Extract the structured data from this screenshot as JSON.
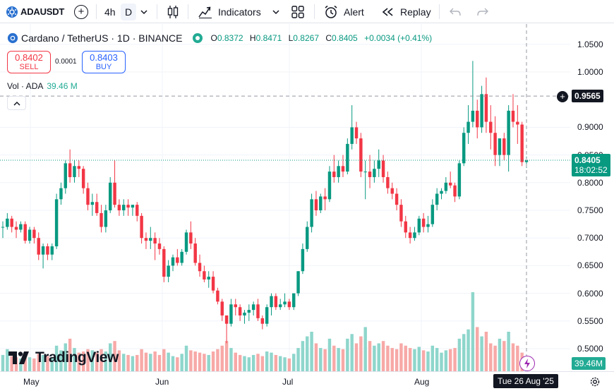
{
  "toolbar": {
    "symbol": "ADAUSDT",
    "timeframes": [
      "4h",
      "D"
    ],
    "active_timeframe": "D",
    "indicators_label": "Indicators",
    "alert_label": "Alert",
    "replay_label": "Replay"
  },
  "legend": {
    "title": "Cardano / TetherUS · 1D · BINANCE",
    "o_label": "O",
    "o_value": "0.8372",
    "h_label": "H",
    "h_value": "0.8471",
    "l_label": "L",
    "l_value": "0.8267",
    "c_label": "C",
    "c_value": "0.8405",
    "change": "+0.0034 (+0.41%)"
  },
  "trade": {
    "sell_price": "0.8402",
    "sell_label": "SELL",
    "buy_price": "0.8403",
    "buy_label": "BUY",
    "spread": "0.0001"
  },
  "volume_legend": {
    "label": "Vol · ADA",
    "value": "39.46 M"
  },
  "price_scale": {
    "ticks": [
      "1.0500",
      "1.0000",
      "0.9000",
      "0.8500",
      "0.8000",
      "0.7500",
      "0.7000",
      "0.6500",
      "0.6000",
      "0.5500",
      "0.5000"
    ],
    "crosshair_price": "0.9565",
    "last_price": "0.8405",
    "countdown": "18:02:52",
    "volume_tag": "39.46M"
  },
  "time_scale": {
    "ticks": [
      "May",
      "Jun",
      "Jul",
      "Aug"
    ],
    "crosshair_date": "Tue 26 Aug '25"
  },
  "brand": "TradingView",
  "colors": {
    "up": "#089981",
    "down": "#f23645",
    "up_vol": "#8ed6cc",
    "down_vol": "#f7a9a7"
  },
  "chart_data": {
    "type": "candlestick",
    "symbol": "ADAUSDT",
    "interval": "1D",
    "ylim": [
      0.48,
      1.07
    ],
    "candles": [
      [
        0.72,
        0.73,
        0.7,
        0.72
      ],
      [
        0.72,
        0.745,
        0.715,
        0.735
      ],
      [
        0.735,
        0.74,
        0.71,
        0.72
      ],
      [
        0.72,
        0.73,
        0.7,
        0.715
      ],
      [
        0.715,
        0.73,
        0.71,
        0.725
      ],
      [
        0.725,
        0.73,
        0.69,
        0.695
      ],
      [
        0.695,
        0.72,
        0.69,
        0.715
      ],
      [
        0.715,
        0.72,
        0.69,
        0.7
      ],
      [
        0.7,
        0.71,
        0.66,
        0.67
      ],
      [
        0.67,
        0.69,
        0.645,
        0.685
      ],
      [
        0.685,
        0.69,
        0.66,
        0.67
      ],
      [
        0.67,
        0.69,
        0.66,
        0.685
      ],
      [
        0.685,
        0.78,
        0.68,
        0.77
      ],
      [
        0.77,
        0.8,
        0.76,
        0.79
      ],
      [
        0.79,
        0.84,
        0.78,
        0.835
      ],
      [
        0.835,
        0.86,
        0.8,
        0.81
      ],
      [
        0.81,
        0.84,
        0.8,
        0.83
      ],
      [
        0.83,
        0.84,
        0.81,
        0.825
      ],
      [
        0.825,
        0.83,
        0.78,
        0.79
      ],
      [
        0.79,
        0.8,
        0.75,
        0.76
      ],
      [
        0.76,
        0.78,
        0.74,
        0.765
      ],
      [
        0.765,
        0.78,
        0.74,
        0.745
      ],
      [
        0.745,
        0.76,
        0.71,
        0.72
      ],
      [
        0.72,
        0.76,
        0.71,
        0.75
      ],
      [
        0.75,
        0.81,
        0.745,
        0.8
      ],
      [
        0.8,
        0.84,
        0.755,
        0.76
      ],
      [
        0.76,
        0.77,
        0.74,
        0.75
      ],
      [
        0.75,
        0.77,
        0.74,
        0.76
      ],
      [
        0.76,
        0.77,
        0.74,
        0.755
      ],
      [
        0.755,
        0.76,
        0.74,
        0.76
      ],
      [
        0.76,
        0.765,
        0.73,
        0.74
      ],
      [
        0.74,
        0.745,
        0.69,
        0.7
      ],
      [
        0.7,
        0.71,
        0.68,
        0.695
      ],
      [
        0.695,
        0.72,
        0.68,
        0.7
      ],
      [
        0.7,
        0.71,
        0.66,
        0.69
      ],
      [
        0.69,
        0.7,
        0.67,
        0.68
      ],
      [
        0.68,
        0.685,
        0.62,
        0.63
      ],
      [
        0.63,
        0.66,
        0.62,
        0.65
      ],
      [
        0.65,
        0.67,
        0.64,
        0.665
      ],
      [
        0.665,
        0.68,
        0.65,
        0.655
      ],
      [
        0.655,
        0.68,
        0.65,
        0.675
      ],
      [
        0.675,
        0.715,
        0.67,
        0.71
      ],
      [
        0.71,
        0.73,
        0.68,
        0.69
      ],
      [
        0.69,
        0.7,
        0.65,
        0.655
      ],
      [
        0.655,
        0.67,
        0.63,
        0.64
      ],
      [
        0.64,
        0.65,
        0.62,
        0.625
      ],
      [
        0.625,
        0.64,
        0.61,
        0.63
      ],
      [
        0.63,
        0.64,
        0.6,
        0.605
      ],
      [
        0.605,
        0.61,
        0.58,
        0.585
      ],
      [
        0.585,
        0.59,
        0.55,
        0.56
      ],
      [
        0.56,
        0.56,
        0.51,
        0.545
      ],
      [
        0.545,
        0.59,
        0.54,
        0.58
      ],
      [
        0.58,
        0.59,
        0.56,
        0.575
      ],
      [
        0.575,
        0.58,
        0.55,
        0.56
      ],
      [
        0.56,
        0.57,
        0.545,
        0.565
      ],
      [
        0.565,
        0.58,
        0.55,
        0.57
      ],
      [
        0.57,
        0.585,
        0.56,
        0.58
      ],
      [
        0.58,
        0.59,
        0.55,
        0.555
      ],
      [
        0.555,
        0.56,
        0.535,
        0.545
      ],
      [
        0.545,
        0.58,
        0.54,
        0.575
      ],
      [
        0.575,
        0.6,
        0.56,
        0.595
      ],
      [
        0.595,
        0.6,
        0.57,
        0.575
      ],
      [
        0.575,
        0.59,
        0.57,
        0.58
      ],
      [
        0.58,
        0.6,
        0.575,
        0.585
      ],
      [
        0.585,
        0.59,
        0.57,
        0.575
      ],
      [
        0.575,
        0.6,
        0.57,
        0.6
      ],
      [
        0.6,
        0.64,
        0.595,
        0.64
      ],
      [
        0.64,
        0.69,
        0.635,
        0.68
      ],
      [
        0.68,
        0.73,
        0.675,
        0.72
      ],
      [
        0.72,
        0.78,
        0.71,
        0.77
      ],
      [
        0.77,
        0.785,
        0.74,
        0.75
      ],
      [
        0.75,
        0.78,
        0.745,
        0.775
      ],
      [
        0.775,
        0.79,
        0.75,
        0.77
      ],
      [
        0.77,
        0.83,
        0.765,
        0.82
      ],
      [
        0.82,
        0.85,
        0.8,
        0.81
      ],
      [
        0.81,
        0.84,
        0.8,
        0.83
      ],
      [
        0.83,
        0.85,
        0.81,
        0.82
      ],
      [
        0.82,
        0.88,
        0.815,
        0.87
      ],
      [
        0.87,
        0.94,
        0.86,
        0.9
      ],
      [
        0.9,
        0.91,
        0.87,
        0.88
      ],
      [
        0.88,
        0.89,
        0.81,
        0.82
      ],
      [
        0.82,
        0.84,
        0.77,
        0.82
      ],
      [
        0.82,
        0.85,
        0.79,
        0.81
      ],
      [
        0.81,
        0.84,
        0.8,
        0.825
      ],
      [
        0.825,
        0.86,
        0.81,
        0.84
      ],
      [
        0.84,
        0.85,
        0.8,
        0.81
      ],
      [
        0.81,
        0.82,
        0.78,
        0.79
      ],
      [
        0.79,
        0.8,
        0.77,
        0.78
      ],
      [
        0.78,
        0.79,
        0.75,
        0.76
      ],
      [
        0.76,
        0.77,
        0.72,
        0.73
      ],
      [
        0.73,
        0.74,
        0.7,
        0.71
      ],
      [
        0.71,
        0.72,
        0.69,
        0.7
      ],
      [
        0.7,
        0.72,
        0.695,
        0.71
      ],
      [
        0.71,
        0.74,
        0.705,
        0.735
      ],
      [
        0.735,
        0.745,
        0.71,
        0.72
      ],
      [
        0.72,
        0.74,
        0.71,
        0.725
      ],
      [
        0.725,
        0.77,
        0.72,
        0.76
      ],
      [
        0.76,
        0.79,
        0.75,
        0.78
      ],
      [
        0.78,
        0.79,
        0.77,
        0.785
      ],
      [
        0.785,
        0.81,
        0.78,
        0.8
      ],
      [
        0.8,
        0.82,
        0.79,
        0.795
      ],
      [
        0.795,
        0.8,
        0.765,
        0.775
      ],
      [
        0.775,
        0.84,
        0.77,
        0.835
      ],
      [
        0.835,
        0.9,
        0.83,
        0.89
      ],
      [
        0.89,
        0.94,
        0.87,
        0.91
      ],
      [
        0.91,
        1.02,
        0.9,
        0.93
      ],
      [
        0.93,
        0.95,
        0.88,
        0.9
      ],
      [
        0.9,
        0.975,
        0.89,
        0.96
      ],
      [
        0.96,
        0.99,
        0.89,
        0.91
      ],
      [
        0.91,
        0.94,
        0.86,
        0.89
      ],
      [
        0.89,
        0.92,
        0.83,
        0.85
      ],
      [
        0.85,
        0.88,
        0.83,
        0.88
      ],
      [
        0.88,
        0.89,
        0.84,
        0.85
      ],
      [
        0.85,
        0.94,
        0.82,
        0.93
      ],
      [
        0.93,
        0.96,
        0.9,
        0.91
      ],
      [
        0.91,
        0.94,
        0.87,
        0.905
      ],
      [
        0.905,
        0.91,
        0.83,
        0.8372
      ],
      [
        0.8372,
        0.8471,
        0.8267,
        0.8405
      ]
    ],
    "volume_millions": [
      70,
      95,
      65,
      60,
      55,
      80,
      60,
      55,
      75,
      70,
      65,
      60,
      110,
      90,
      120,
      140,
      100,
      80,
      85,
      95,
      90,
      80,
      95,
      85,
      120,
      130,
      90,
      75,
      70,
      65,
      70,
      95,
      80,
      75,
      85,
      70,
      95,
      80,
      65,
      60,
      75,
      110,
      90,
      85,
      80,
      75,
      70,
      85,
      95,
      110,
      130,
      100,
      80,
      70,
      65,
      60,
      70,
      75,
      65,
      85,
      80,
      70,
      65,
      60,
      55,
      75,
      100,
      130,
      150,
      170,
      120,
      100,
      95,
      140,
      110,
      100,
      95,
      140,
      160,
      120,
      150,
      190,
      130,
      110,
      120,
      130,
      110,
      100,
      95,
      120,
      110,
      100,
      95,
      105,
      90,
      85,
      110,
      100,
      80,
      90,
      95,
      100,
      140,
      160,
      180,
      340,
      190,
      150,
      170,
      120,
      110,
      140,
      130,
      170,
      120,
      110,
      80,
      39.46
    ],
    "crosshair_price": 0.9565,
    "last_price": 0.8405,
    "crosshair_date": "Tue 26 Aug '25"
  }
}
